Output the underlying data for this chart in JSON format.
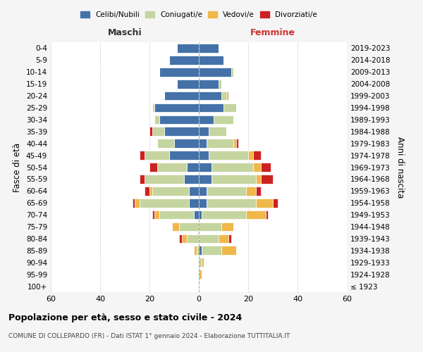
{
  "age_groups": [
    "100+",
    "95-99",
    "90-94",
    "85-89",
    "80-84",
    "75-79",
    "70-74",
    "65-69",
    "60-64",
    "55-59",
    "50-54",
    "45-49",
    "40-44",
    "35-39",
    "30-34",
    "25-29",
    "20-24",
    "15-19",
    "10-14",
    "5-9",
    "0-4"
  ],
  "birth_years": [
    "≤ 1923",
    "1924-1928",
    "1929-1933",
    "1934-1938",
    "1939-1943",
    "1944-1948",
    "1949-1953",
    "1954-1958",
    "1959-1963",
    "1964-1968",
    "1969-1973",
    "1974-1978",
    "1979-1983",
    "1984-1988",
    "1989-1993",
    "1994-1998",
    "1999-2003",
    "2004-2008",
    "2009-2013",
    "2014-2018",
    "2019-2023"
  ],
  "colors": {
    "celibe": "#4472a8",
    "coniugato": "#c5d5a0",
    "vedovo": "#f0b84a",
    "divorziato": "#cc2222"
  },
  "males": {
    "celibe": [
      0,
      0,
      0,
      0,
      0,
      0,
      2,
      4,
      4,
      6,
      5,
      12,
      10,
      14,
      16,
      18,
      14,
      9,
      16,
      12,
      9
    ],
    "coniugato": [
      0,
      0,
      0,
      1,
      5,
      8,
      14,
      20,
      15,
      16,
      12,
      10,
      7,
      5,
      2,
      1,
      0,
      0,
      0,
      0,
      0
    ],
    "vedovo": [
      0,
      0,
      0,
      1,
      2,
      3,
      2,
      2,
      1,
      0,
      0,
      0,
      0,
      0,
      0,
      0,
      0,
      0,
      0,
      0,
      0
    ],
    "divorziato": [
      0,
      0,
      0,
      0,
      1,
      0,
      1,
      1,
      2,
      2,
      3,
      2,
      0,
      1,
      0,
      0,
      0,
      0,
      0,
      0,
      0
    ]
  },
  "females": {
    "celibe": [
      0,
      0,
      0,
      1,
      0,
      0,
      1,
      3,
      3,
      5,
      5,
      4,
      3,
      4,
      6,
      10,
      9,
      8,
      13,
      10,
      8
    ],
    "coniugato": [
      0,
      0,
      1,
      8,
      8,
      9,
      18,
      20,
      16,
      18,
      17,
      16,
      11,
      7,
      8,
      5,
      2,
      1,
      1,
      0,
      0
    ],
    "vedovo": [
      0,
      1,
      1,
      6,
      4,
      5,
      8,
      7,
      4,
      2,
      3,
      2,
      1,
      0,
      0,
      0,
      1,
      0,
      0,
      0,
      0
    ],
    "divorziato": [
      0,
      0,
      0,
      0,
      1,
      0,
      1,
      2,
      2,
      5,
      4,
      3,
      1,
      0,
      0,
      0,
      0,
      0,
      0,
      0,
      0
    ]
  },
  "xlim": 60,
  "title": "Popolazione per età, sesso e stato civile - 2024",
  "subtitle": "COMUNE DI COLLEPARDO (FR) - Dati ISTAT 1° gennaio 2024 - Elaborazione TUTTITALIA.IT",
  "ylabel_left": "Fasce di età",
  "ylabel_right": "Anni di nascita",
  "xlabel_left": "Maschi",
  "xlabel_right": "Femmine",
  "legend_labels": [
    "Celibi/Nubili",
    "Coniugati/e",
    "Vedovi/e",
    "Divorziati/e"
  ],
  "background_color": "#f5f5f5",
  "plot_background": "#ffffff"
}
